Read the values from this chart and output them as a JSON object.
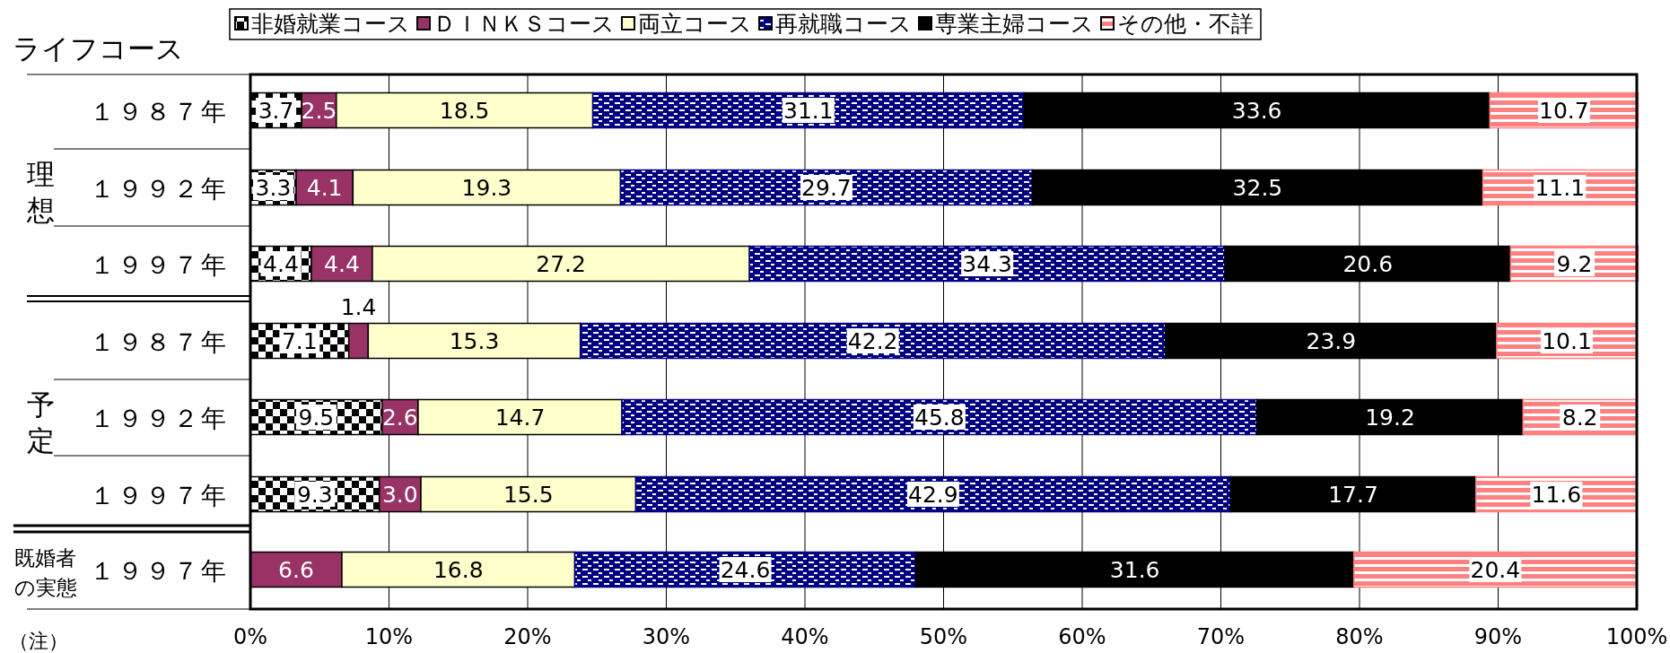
{
  "chart_data": {
    "type": "bar",
    "orientation": "horizontal",
    "stacked": true,
    "ylabel": "ライフコース",
    "categories": [
      "１９８７年",
      "１９９２年",
      "１９９７年",
      "１９８７年",
      "１９９２年",
      "１９９７年",
      "１９９７年"
    ],
    "series": [
      {
        "name": "非婚就業コース",
        "color": "#000000",
        "values": [
          3.7,
          3.3,
          4.4,
          7.1,
          9.5,
          9.3,
          null
        ],
        "value_labels": [
          "3.7",
          "3.3",
          "4.4",
          "7.1",
          "9.5",
          "9.3",
          null
        ]
      },
      {
        "name": "ＤＩＮＫＳコース",
        "color": "#993366",
        "values": [
          2.5,
          4.1,
          4.4,
          1.4,
          2.6,
          3.0,
          6.6
        ],
        "value_labels": [
          "2.5",
          "4.1",
          "4.4",
          "1.4",
          "2.6",
          "3.0",
          "6.6"
        ]
      },
      {
        "name": "両立コース",
        "color": "#ffffcc",
        "values": [
          18.5,
          19.3,
          27.2,
          15.3,
          14.7,
          15.5,
          16.8
        ],
        "value_labels": [
          "18.5",
          "19.3",
          "27.2",
          "15.3",
          "14.7",
          "15.5",
          "16.8"
        ]
      },
      {
        "name": "再就職コース",
        "color": "#000080",
        "values": [
          31.1,
          29.7,
          34.3,
          42.2,
          45.8,
          42.9,
          24.6
        ],
        "value_labels": [
          "31.1",
          "29.7",
          "34.3",
          "42.2",
          "45.8",
          "42.9",
          "24.6"
        ]
      },
      {
        "name": "専業主婦コース",
        "color": "#000000",
        "values": [
          33.6,
          32.5,
          20.6,
          23.9,
          19.2,
          17.7,
          31.6
        ],
        "value_labels": [
          "33.6",
          "32.5",
          "20.6",
          "23.9",
          "19.2",
          "17.7",
          "31.6"
        ]
      },
      {
        "name": "その他・不詳",
        "color": "#ff8080",
        "values": [
          10.7,
          11.1,
          9.2,
          10.1,
          8.2,
          11.6,
          20.4
        ],
        "value_labels": [
          "10.7",
          "11.1",
          "9.2",
          "10.1",
          "8.2",
          "11.6",
          "20.4"
        ]
      }
    ],
    "xlim": [
      0,
      100
    ],
    "xticks": [
      {
        "value": 0,
        "label": "0%"
      },
      {
        "value": 10,
        "label": "10%"
      },
      {
        "value": 20,
        "label": "20%"
      },
      {
        "value": 30,
        "label": "30%"
      },
      {
        "value": 40,
        "label": "40%"
      },
      {
        "value": 50,
        "label": "50%"
      },
      {
        "value": 60,
        "label": "60%"
      },
      {
        "value": 70,
        "label": "70%"
      },
      {
        "value": 80,
        "label": "80%"
      },
      {
        "value": 90,
        "label": "90%"
      },
      {
        "value": 100,
        "label": "100%"
      }
    ],
    "grid": "x",
    "legend": "top",
    "annotations": [
      "理想",
      "予定",
      "既婚者の実態",
      "（注）"
    ]
  }
}
